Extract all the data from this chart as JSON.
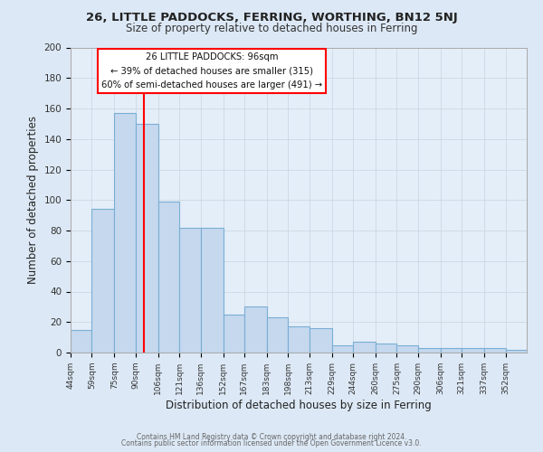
{
  "title1": "26, LITTLE PADDOCKS, FERRING, WORTHING, BN12 5NJ",
  "title2": "Size of property relative to detached houses in Ferring",
  "xlabel": "Distribution of detached houses by size in Ferring",
  "ylabel": "Number of detached properties",
  "bar_color": "#c5d8ee",
  "bar_edge_color": "#7aaed4",
  "background_color": "#dce8f5",
  "plot_bg_color": "#e4eef8",
  "grid_color": "#c8d4e0",
  "categories": [
    "44sqm",
    "59sqm",
    "75sqm",
    "90sqm",
    "106sqm",
    "121sqm",
    "136sqm",
    "152sqm",
    "167sqm",
    "183sqm",
    "198sqm",
    "213sqm",
    "229sqm",
    "244sqm",
    "260sqm",
    "275sqm",
    "290sqm",
    "306sqm",
    "321sqm",
    "337sqm",
    "352sqm"
  ],
  "values": [
    15,
    94,
    157,
    150,
    99,
    82,
    82,
    25,
    30,
    23,
    17,
    16,
    5,
    7,
    6,
    5,
    3,
    3,
    3,
    3,
    2
  ],
  "redline_x": 96,
  "bin_edges": [
    44,
    59,
    75,
    90,
    106,
    121,
    136,
    152,
    167,
    183,
    198,
    213,
    229,
    244,
    260,
    275,
    290,
    306,
    321,
    337,
    352,
    367
  ],
  "annotation_title": "26 LITTLE PADDOCKS: 96sqm",
  "annotation_line1": "← 39% of detached houses are smaller (315)",
  "annotation_line2": "60% of semi-detached houses are larger (491) →",
  "ylim": [
    0,
    200
  ],
  "yticks": [
    0,
    20,
    40,
    60,
    80,
    100,
    120,
    140,
    160,
    180,
    200
  ],
  "footer1": "Contains HM Land Registry data © Crown copyright and database right 2024.",
  "footer2": "Contains public sector information licensed under the Open Government Licence v3.0."
}
